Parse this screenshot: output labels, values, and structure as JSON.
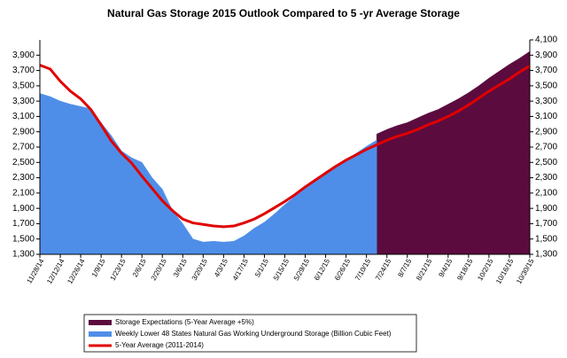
{
  "chart_data": {
    "type": "area",
    "title": "Natural Gas Storage 2015 Outlook Compared to 5 -yr Average Storage",
    "categories": [
      "11/28/14",
      null,
      "12/12/14",
      null,
      "12/26/14",
      null,
      "1/9/15",
      null,
      "1/23/15",
      null,
      "2/6/15",
      null,
      "2/20/15",
      null,
      "3/6/15",
      null,
      "3/20/15",
      null,
      "4/3/15",
      null,
      "4/17/15",
      null,
      "5/1/15",
      null,
      "5/15/15",
      null,
      "5/29/15",
      null,
      "6/12/15",
      null,
      "6/26/15",
      null,
      "7/10/15",
      null,
      "7/24/15",
      null,
      "8/7/15",
      null,
      "8/21/15",
      null,
      "9/4/15",
      null,
      "9/18/15",
      null,
      "10/2/15",
      null,
      "10/16/15",
      null,
      "10/30/15"
    ],
    "series": [
      {
        "name": "Storage Expectations (5-Year Average +5%)",
        "color": "#5c0b3f",
        "kind": "area",
        "values": [
          null,
          null,
          null,
          null,
          null,
          null,
          null,
          null,
          null,
          null,
          null,
          null,
          null,
          null,
          null,
          null,
          null,
          null,
          null,
          null,
          null,
          null,
          null,
          null,
          null,
          null,
          null,
          null,
          null,
          null,
          null,
          null,
          null,
          2870,
          2930,
          2980,
          3020,
          3080,
          3140,
          3190,
          3260,
          3330,
          3410,
          3500,
          3600,
          3690,
          3780,
          3860,
          3950
        ]
      },
      {
        "name": "Weekly Lower 48 States Natural Gas Working Underground Storage  (Billion Cubic Feet)",
        "color": "#4f8ee8",
        "kind": "area",
        "values": [
          3400,
          3360,
          3300,
          3260,
          3230,
          3200,
          3020,
          2850,
          2650,
          2560,
          2500,
          2300,
          2150,
          1870,
          1700,
          1500,
          1460,
          1470,
          1460,
          1470,
          1540,
          1640,
          1720,
          1830,
          1950,
          2060,
          2170,
          2280,
          2380,
          2460,
          2540,
          2620,
          2710,
          2790,
          null,
          null,
          null,
          null,
          null,
          null,
          null,
          null,
          null,
          null,
          null,
          null,
          null,
          null,
          null
        ]
      },
      {
        "name": "5-Year Average (2011-2014)",
        "color": "#e00000",
        "kind": "line",
        "values": [
          3770,
          3720,
          3560,
          3430,
          3330,
          3190,
          2990,
          2780,
          2620,
          2490,
          2320,
          2160,
          2000,
          1870,
          1760,
          1710,
          1690,
          1670,
          1660,
          1670,
          1710,
          1760,
          1830,
          1910,
          1990,
          2080,
          2180,
          2270,
          2360,
          2450,
          2530,
          2600,
          2670,
          2730,
          2790,
          2840,
          2880,
          2930,
          2990,
          3040,
          3100,
          3170,
          3250,
          3340,
          3430,
          3510,
          3590,
          3680,
          3760
        ]
      }
    ],
    "ylim": [
      1300,
      4100
    ],
    "yticks": [
      {
        "value": 1300,
        "label": "1,300"
      },
      {
        "value": 1500,
        "label": "1,500"
      },
      {
        "value": 1700,
        "label": "1,700"
      },
      {
        "value": 1900,
        "label": "1,900"
      },
      {
        "value": 2100,
        "label": "2,100"
      },
      {
        "value": 2300,
        "label": "2,300"
      },
      {
        "value": 2500,
        "label": "2,500"
      },
      {
        "value": 2700,
        "label": "2,700"
      },
      {
        "value": 2900,
        "label": "2,900"
      },
      {
        "value": 3100,
        "label": "3,100"
      },
      {
        "value": 3300,
        "label": "3,300"
      },
      {
        "value": 3500,
        "label": "3,500"
      },
      {
        "value": 3700,
        "label": "3,700"
      },
      {
        "value": 3900,
        "label": "3,900"
      }
    ],
    "y2lim": [
      1300,
      4100
    ],
    "y2ticks": [
      {
        "value": 1300,
        "label": "1,300"
      },
      {
        "value": 1500,
        "label": "1,500"
      },
      {
        "value": 1700,
        "label": "1,700"
      },
      {
        "value": 1900,
        "label": "1,900"
      },
      {
        "value": 2100,
        "label": "2,100"
      },
      {
        "value": 2300,
        "label": "2,300"
      },
      {
        "value": 2500,
        "label": "2,500"
      },
      {
        "value": 2700,
        "label": "2,700"
      },
      {
        "value": 2900,
        "label": "2,900"
      },
      {
        "value": 3100,
        "label": "3,100"
      },
      {
        "value": 3300,
        "label": "3,300"
      },
      {
        "value": 3500,
        "label": "3,500"
      },
      {
        "value": 3700,
        "label": "3,700"
      },
      {
        "value": 3900,
        "label": "3,900"
      },
      {
        "value": 4100,
        "label": "4,100"
      }
    ],
    "grid": false
  }
}
